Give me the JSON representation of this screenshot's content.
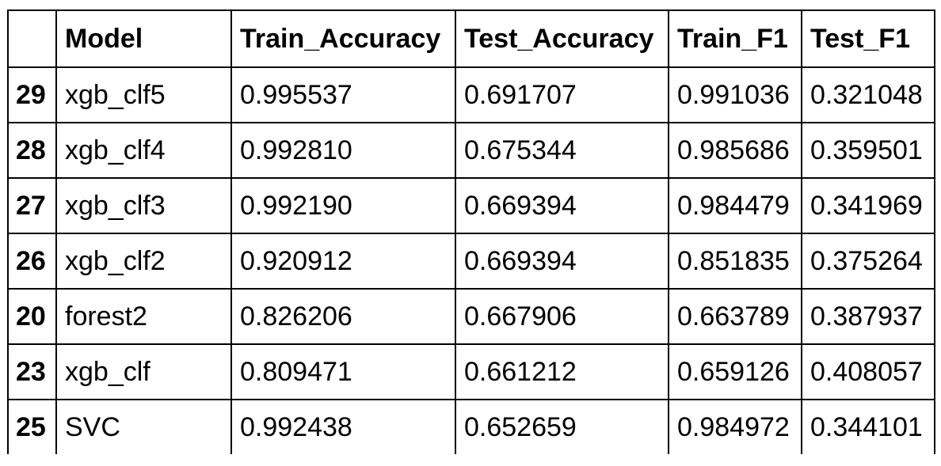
{
  "table": {
    "columns": [
      "",
      "Model",
      "Train_Accuracy",
      "Test_Accuracy",
      "Train_F1",
      "Test_F1"
    ],
    "rows": [
      {
        "index": "29",
        "model": "xgb_clf5",
        "train_accuracy": "0.995537",
        "test_accuracy": "0.691707",
        "train_f1": "0.991036",
        "test_f1": "0.321048"
      },
      {
        "index": "28",
        "model": "xgb_clf4",
        "train_accuracy": "0.992810",
        "test_accuracy": "0.675344",
        "train_f1": "0.985686",
        "test_f1": "0.359501"
      },
      {
        "index": "27",
        "model": "xgb_clf3",
        "train_accuracy": "0.992190",
        "test_accuracy": "0.669394",
        "train_f1": "0.984479",
        "test_f1": "0.341969"
      },
      {
        "index": "26",
        "model": "xgb_clf2",
        "train_accuracy": "0.920912",
        "test_accuracy": "0.669394",
        "train_f1": "0.851835",
        "test_f1": "0.375264"
      },
      {
        "index": "20",
        "model": "forest2",
        "train_accuracy": "0.826206",
        "test_accuracy": "0.667906",
        "train_f1": "0.663789",
        "test_f1": "0.387937"
      },
      {
        "index": "23",
        "model": "xgb_clf",
        "train_accuracy": "0.809471",
        "test_accuracy": "0.661212",
        "train_f1": "0.659126",
        "test_f1": "0.408057"
      },
      {
        "index": "25",
        "model": "SVC",
        "train_accuracy": "0.992438",
        "test_accuracy": "0.652659",
        "train_f1": "0.984972",
        "test_f1": "0.344101"
      }
    ]
  }
}
